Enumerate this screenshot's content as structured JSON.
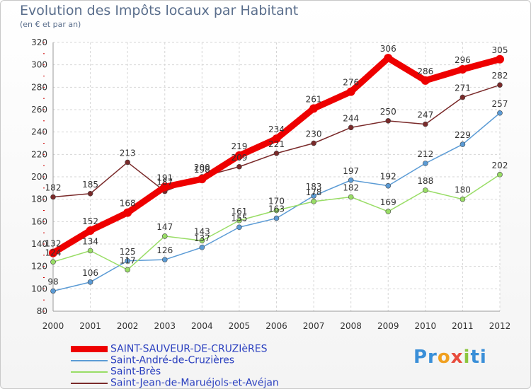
{
  "chart_data": {
    "type": "line",
    "title": "Evolution des Impôts locaux par Habitant",
    "subtitle": "(en € et par an)",
    "xlabel": "",
    "ylabel": "",
    "x": [
      "2000",
      "2001",
      "2002",
      "2003",
      "2004",
      "2005",
      "2006",
      "2007",
      "2008",
      "2009",
      "2010",
      "2011",
      "2012"
    ],
    "ylim": [
      80,
      320
    ],
    "yticks": [
      80,
      100,
      120,
      140,
      160,
      180,
      200,
      220,
      240,
      260,
      280,
      300,
      320
    ],
    "grid": true,
    "legend_position": "bottom-left",
    "series": [
      {
        "name": "SAINT-SAUVEUR-DE-CRUZIèRES",
        "color": "#ee0000",
        "width": "thick",
        "values": [
          132,
          152,
          168,
          191,
          198,
          219,
          234,
          261,
          276,
          306,
          286,
          296,
          305
        ],
        "labels": [
          "132",
          "152",
          "168",
          "191",
          "198",
          "219",
          "234",
          "261",
          "276",
          "306",
          "286",
          "296",
          "305"
        ]
      },
      {
        "name": "Saint-André-de-Cruzières",
        "color": "#5b9bd5",
        "width": "thin",
        "values": [
          98,
          106,
          125,
          126,
          137,
          155,
          163,
          183,
          197,
          192,
          212,
          229,
          257
        ],
        "labels": [
          "98",
          "106",
          "125",
          "126",
          "137",
          "155",
          "163",
          "183",
          "197",
          "192",
          "212",
          "229",
          "257"
        ]
      },
      {
        "name": "Saint-Brès",
        "color": "#99dd66",
        "width": "thin",
        "values": [
          124,
          134,
          117,
          147,
          143,
          161,
          170,
          178,
          182,
          169,
          188,
          180,
          202
        ],
        "labels": [
          "124",
          "134",
          "117",
          "147",
          "143",
          "161",
          "170",
          "178",
          "182",
          "169",
          "188",
          "180",
          "202"
        ]
      },
      {
        "name": "Saint-Jean-de-Maruéjols-et-Avéjan",
        "color": "#7a2a2a",
        "width": "thin",
        "values": [
          182,
          185,
          213,
          187,
          200,
          209,
          221,
          230,
          244,
          250,
          247,
          271,
          282
        ],
        "labels": [
          "182",
          "185",
          "213",
          "187",
          "200",
          "209",
          "221",
          "230",
          "244",
          "250",
          "247",
          "271",
          "282"
        ]
      }
    ]
  },
  "logo": {
    "p1": "Pr",
    "p2": "o",
    "p3": "x",
    "p4": "i",
    "p5": "ti"
  }
}
